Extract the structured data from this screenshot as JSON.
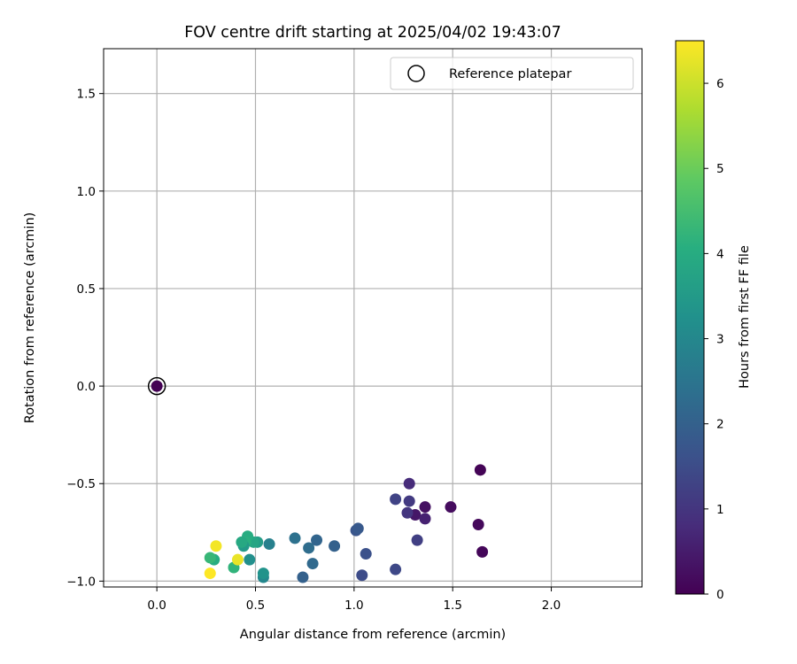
{
  "chart_data": {
    "type": "scatter",
    "title": "FOV centre drift starting at 2025/04/02 19:43:07",
    "xlabel": "Angular distance from reference (arcmin)",
    "ylabel": "Rotation from reference (arcmin)",
    "xlim": [
      -0.27,
      2.46
    ],
    "ylim": [
      -1.03,
      1.73
    ],
    "xticks": [
      0.0,
      0.5,
      1.0,
      1.5,
      2.0
    ],
    "xtick_labels": [
      "0.0",
      "0.5",
      "1.0",
      "1.5",
      "2.0"
    ],
    "yticks": [
      -1.0,
      -0.5,
      0.0,
      0.5,
      1.0,
      1.5
    ],
    "ytick_labels": [
      "−1.0",
      "−0.5",
      "0.0",
      "0.5",
      "1.0",
      "1.5"
    ],
    "grid": true,
    "legend": {
      "position": "top-right",
      "entries": [
        "Reference platepar"
      ]
    },
    "reference_point": {
      "x": 0.0,
      "y": 0.0
    },
    "colorbar": {
      "label": "Hours from first FF file",
      "colormap": "viridis",
      "range": [
        0,
        6.5
      ],
      "ticks": [
        0,
        1,
        2,
        3,
        4,
        5,
        6
      ],
      "tick_labels": [
        "0",
        "1",
        "2",
        "3",
        "4",
        "5",
        "6"
      ]
    },
    "points": [
      {
        "x": 0.0,
        "y": 0.0,
        "hours": 0.0
      },
      {
        "x": 1.64,
        "y": -0.43,
        "hours": 0.05
      },
      {
        "x": 1.65,
        "y": -0.85,
        "hours": 0.1
      },
      {
        "x": 1.63,
        "y": -0.71,
        "hours": 0.15
      },
      {
        "x": 1.49,
        "y": -0.62,
        "hours": 0.2
      },
      {
        "x": 1.36,
        "y": -0.62,
        "hours": 0.3
      },
      {
        "x": 1.31,
        "y": -0.66,
        "hours": 0.4
      },
      {
        "x": 1.36,
        "y": -0.68,
        "hours": 0.6
      },
      {
        "x": 1.28,
        "y": -0.5,
        "hours": 0.8
      },
      {
        "x": 1.27,
        "y": -0.65,
        "hours": 1.0
      },
      {
        "x": 1.28,
        "y": -0.59,
        "hours": 1.1
      },
      {
        "x": 1.32,
        "y": -0.79,
        "hours": 1.2
      },
      {
        "x": 1.21,
        "y": -0.58,
        "hours": 1.3
      },
      {
        "x": 1.21,
        "y": -0.94,
        "hours": 1.4
      },
      {
        "x": 1.04,
        "y": -0.97,
        "hours": 1.5
      },
      {
        "x": 1.06,
        "y": -0.86,
        "hours": 1.6
      },
      {
        "x": 1.01,
        "y": -0.74,
        "hours": 1.7
      },
      {
        "x": 1.02,
        "y": -0.73,
        "hours": 1.8
      },
      {
        "x": 0.9,
        "y": -0.82,
        "hours": 2.0
      },
      {
        "x": 0.81,
        "y": -0.79,
        "hours": 2.1
      },
      {
        "x": 0.79,
        "y": -0.91,
        "hours": 2.2
      },
      {
        "x": 0.77,
        "y": -0.83,
        "hours": 2.3
      },
      {
        "x": 0.74,
        "y": -0.98,
        "hours": 2.0
      },
      {
        "x": 0.7,
        "y": -0.78,
        "hours": 2.4
      },
      {
        "x": 0.57,
        "y": -0.81,
        "hours": 2.8
      },
      {
        "x": 0.54,
        "y": -0.98,
        "hours": 3.0
      },
      {
        "x": 0.54,
        "y": -0.96,
        "hours": 3.3
      },
      {
        "x": 0.51,
        "y": -0.8,
        "hours": 3.6
      },
      {
        "x": 0.49,
        "y": -0.8,
        "hours": 3.8
      },
      {
        "x": 0.47,
        "y": -0.89,
        "hours": 3.2
      },
      {
        "x": 0.46,
        "y": -0.77,
        "hours": 4.0
      },
      {
        "x": 0.45,
        "y": -0.8,
        "hours": 4.1
      },
      {
        "x": 0.44,
        "y": -0.82,
        "hours": 3.5
      },
      {
        "x": 0.43,
        "y": -0.8,
        "hours": 3.9
      },
      {
        "x": 0.39,
        "y": -0.93,
        "hours": 4.2
      },
      {
        "x": 0.29,
        "y": -0.89,
        "hours": 4.0
      },
      {
        "x": 0.27,
        "y": -0.88,
        "hours": 4.3
      },
      {
        "x": 0.41,
        "y": -0.89,
        "hours": 6.3
      },
      {
        "x": 0.3,
        "y": -0.82,
        "hours": 6.4
      },
      {
        "x": 0.27,
        "y": -0.96,
        "hours": 6.5
      }
    ]
  }
}
